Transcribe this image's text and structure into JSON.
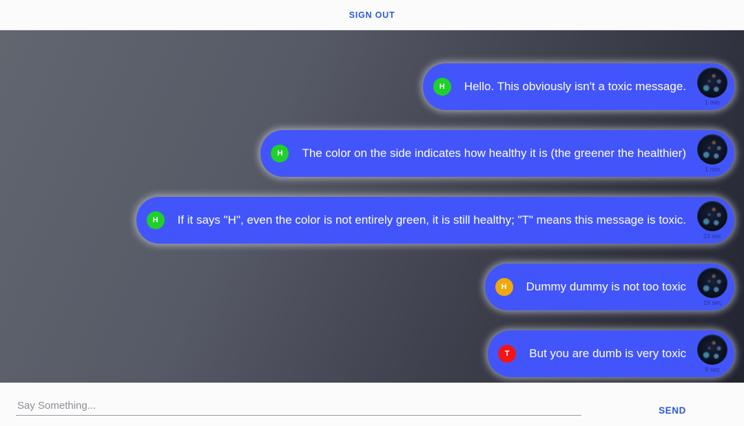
{
  "header": {
    "sign_out_label": "SIGN OUT"
  },
  "messages": [
    {
      "badge": "H",
      "badge_color": "#1fd02b",
      "text": "Hello. This obviously isn't a toxic message.",
      "timestamp": "1 min"
    },
    {
      "badge": "H",
      "badge_color": "#1fd02b",
      "text": "The color on the side indicates how healthy it is (the greener the healthier)",
      "timestamp": "1 min"
    },
    {
      "badge": "H",
      "badge_color": "#1fd02b",
      "text": "If it says \"H\", even the color is not entirely green, it is still healthy; \"T\" means this message is toxic.",
      "timestamp": "23 sec"
    },
    {
      "badge": "H",
      "badge_color": "#f0a90c",
      "text": "Dummy dummy is not too toxic",
      "timestamp": "19 sec"
    },
    {
      "badge": "T",
      "badge_color": "#f21515",
      "text": "But you are dumb is very toxic",
      "timestamp": "9 sec"
    }
  ],
  "composer": {
    "placeholder": "Say Something...",
    "send_label": "SEND"
  },
  "colors": {
    "bubble_blue": "#4255fa",
    "accent_blue": "#2b59d8",
    "healthy_green": "#1fd02b",
    "warning_orange": "#f0a90c",
    "toxic_red": "#f21515"
  }
}
